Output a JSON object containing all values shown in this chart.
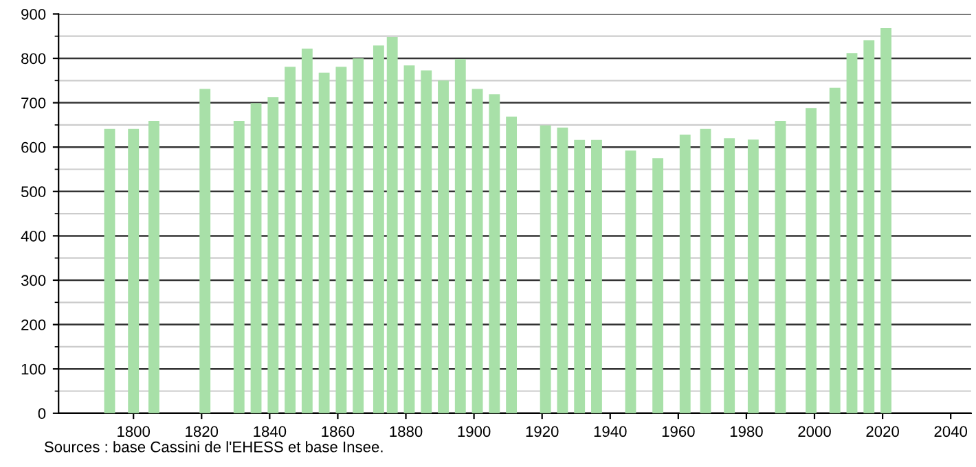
{
  "chart_data": {
    "type": "bar",
    "x": [
      1793,
      1800,
      1806,
      1821,
      1831,
      1836,
      1841,
      1846,
      1851,
      1856,
      1861,
      1866,
      1872,
      1876,
      1881,
      1886,
      1891,
      1896,
      1901,
      1906,
      1911,
      1921,
      1926,
      1931,
      1936,
      1946,
      1954,
      1962,
      1968,
      1975,
      1982,
      1990,
      1999,
      2006,
      2011,
      2016,
      2021
    ],
    "values": [
      641,
      641,
      659,
      731,
      659,
      699,
      713,
      781,
      822,
      768,
      781,
      800,
      829,
      848,
      784,
      773,
      750,
      798,
      731,
      719,
      669,
      649,
      644,
      616,
      616,
      592,
      575,
      628,
      641,
      620,
      617,
      659,
      688,
      734,
      812,
      841,
      868
    ],
    "color": "#a8e0a8",
    "xlim": [
      1778,
      2046
    ],
    "xticks": [
      1800,
      1820,
      1840,
      1860,
      1880,
      1900,
      1920,
      1940,
      1960,
      1980,
      2000,
      2020,
      2040
    ],
    "ylim": [
      0,
      900
    ],
    "yticks": [
      0,
      100,
      200,
      300,
      400,
      500,
      600,
      700,
      800,
      900
    ],
    "grid": "y",
    "annotations": [
      "Sources : base Cassini de l'EHESS et base Insee."
    ]
  }
}
